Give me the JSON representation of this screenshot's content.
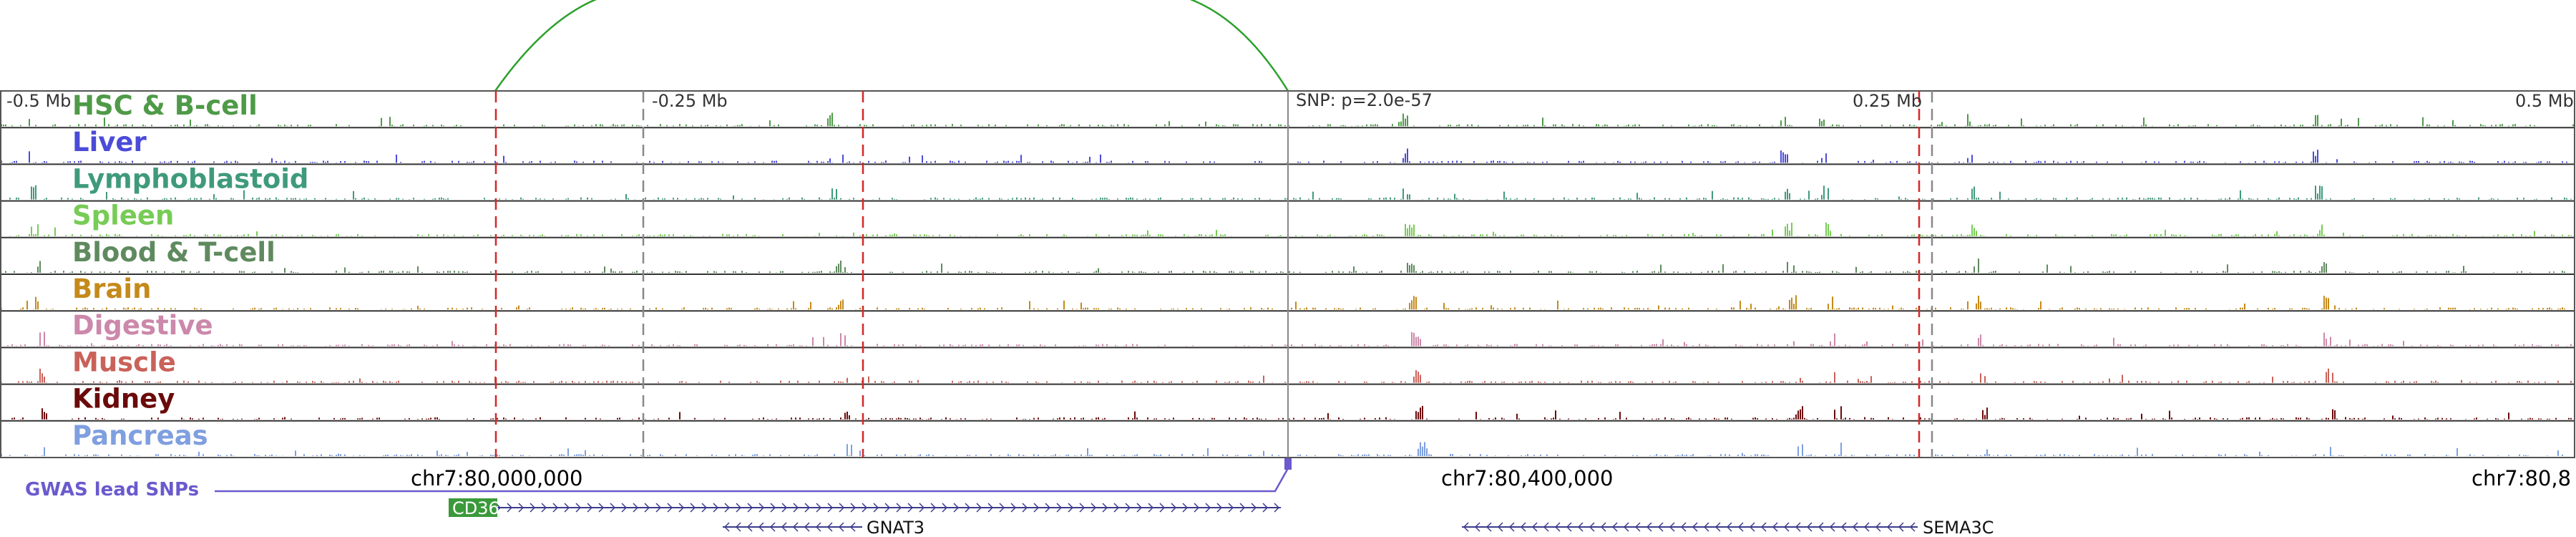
{
  "colors": {
    "frame": "#555555",
    "red_line": "#d62728",
    "gray_line": "#888888",
    "arc": "#2ca02c",
    "gwas": "#6a5acd",
    "gene": "#3b3b8c",
    "gene_box": "#3a9a3a"
  },
  "tracks": [
    {
      "name": "HSC & B-cell",
      "color": "#4e9a48"
    },
    {
      "name": "Liver",
      "color": "#4b4bd8"
    },
    {
      "name": "Lymphoblastoid",
      "color": "#3f9a7c"
    },
    {
      "name": "Spleen",
      "color": "#77cc55"
    },
    {
      "name": "Blood & T-cell",
      "color": "#5f8a5f"
    },
    {
      "name": "Brain",
      "color": "#c48a1a"
    },
    {
      "name": "Digestive",
      "color": "#cc88aa"
    },
    {
      "name": "Muscle",
      "color": "#c9625a"
    },
    {
      "name": "Kidney",
      "color": "#6b0a0a"
    },
    {
      "name": "Pancreas",
      "color": "#7f9fdf"
    }
  ],
  "offsets": {
    "left": "-0.5 Mb",
    "left_mid": "-0.25 Mb",
    "right_mid": "0.25 Mb",
    "right": "0.5 Mb"
  },
  "snp_label": "SNP: p=2.0e-57",
  "gwas_label": "GWAS lead SNPs",
  "coords": [
    "chr7:80,000,000",
    "chr7:80,400,000",
    "chr7:80,8"
  ],
  "genes": [
    {
      "name": "CD36",
      "strand": "+",
      "boxed": true
    },
    {
      "name": "GNAT3",
      "strand": "-",
      "boxed": false
    },
    {
      "name": "SEMA3C",
      "strand": "-",
      "boxed": false
    }
  ]
}
